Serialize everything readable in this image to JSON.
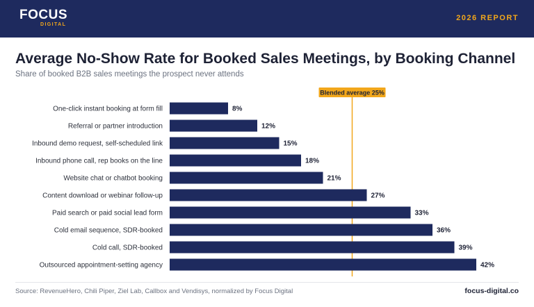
{
  "header": {
    "logo_text": "FOCUS",
    "logo_subtext": "DIGITAL",
    "report_label": "2026 REPORT"
  },
  "footer": {
    "source": "Source: RevenueHero, Chili Piper, Ziel Lab, Callbox and Vendisys, normalized by Focus Digital",
    "site": "focus-digital.co"
  },
  "colors": {
    "brand_navy": "#1e2a5e",
    "accent_gold": "#f2a71b",
    "bar": "#1e2a5e"
  },
  "chart_data": {
    "type": "bar",
    "orientation": "horizontal",
    "title": "Average No-Show Rate for Booked Sales Meetings, by Booking Channel",
    "subtitle": "Share of booked B2B sales meetings the prospect never attends",
    "categories": [
      "One-click instant booking at form fill",
      "Referral or partner introduction",
      "Inbound demo request, self-scheduled link",
      "Inbound phone call, rep books on the line",
      "Website chat or chatbot booking",
      "Content download or webinar follow-up",
      "Paid search or paid social lead form",
      "Cold email sequence, SDR-booked",
      "Cold call, SDR-booked",
      "Outsourced appointment-setting agency"
    ],
    "values": [
      8,
      12,
      15,
      18,
      21,
      27,
      33,
      36,
      39,
      42
    ],
    "value_labels": [
      "8%",
      "12%",
      "15%",
      "18%",
      "21%",
      "27%",
      "33%",
      "36%",
      "39%",
      "42%"
    ],
    "xlim": [
      0,
      45
    ],
    "grid": false,
    "reference_line": {
      "value": 25,
      "label": "Blended average 25%"
    }
  }
}
